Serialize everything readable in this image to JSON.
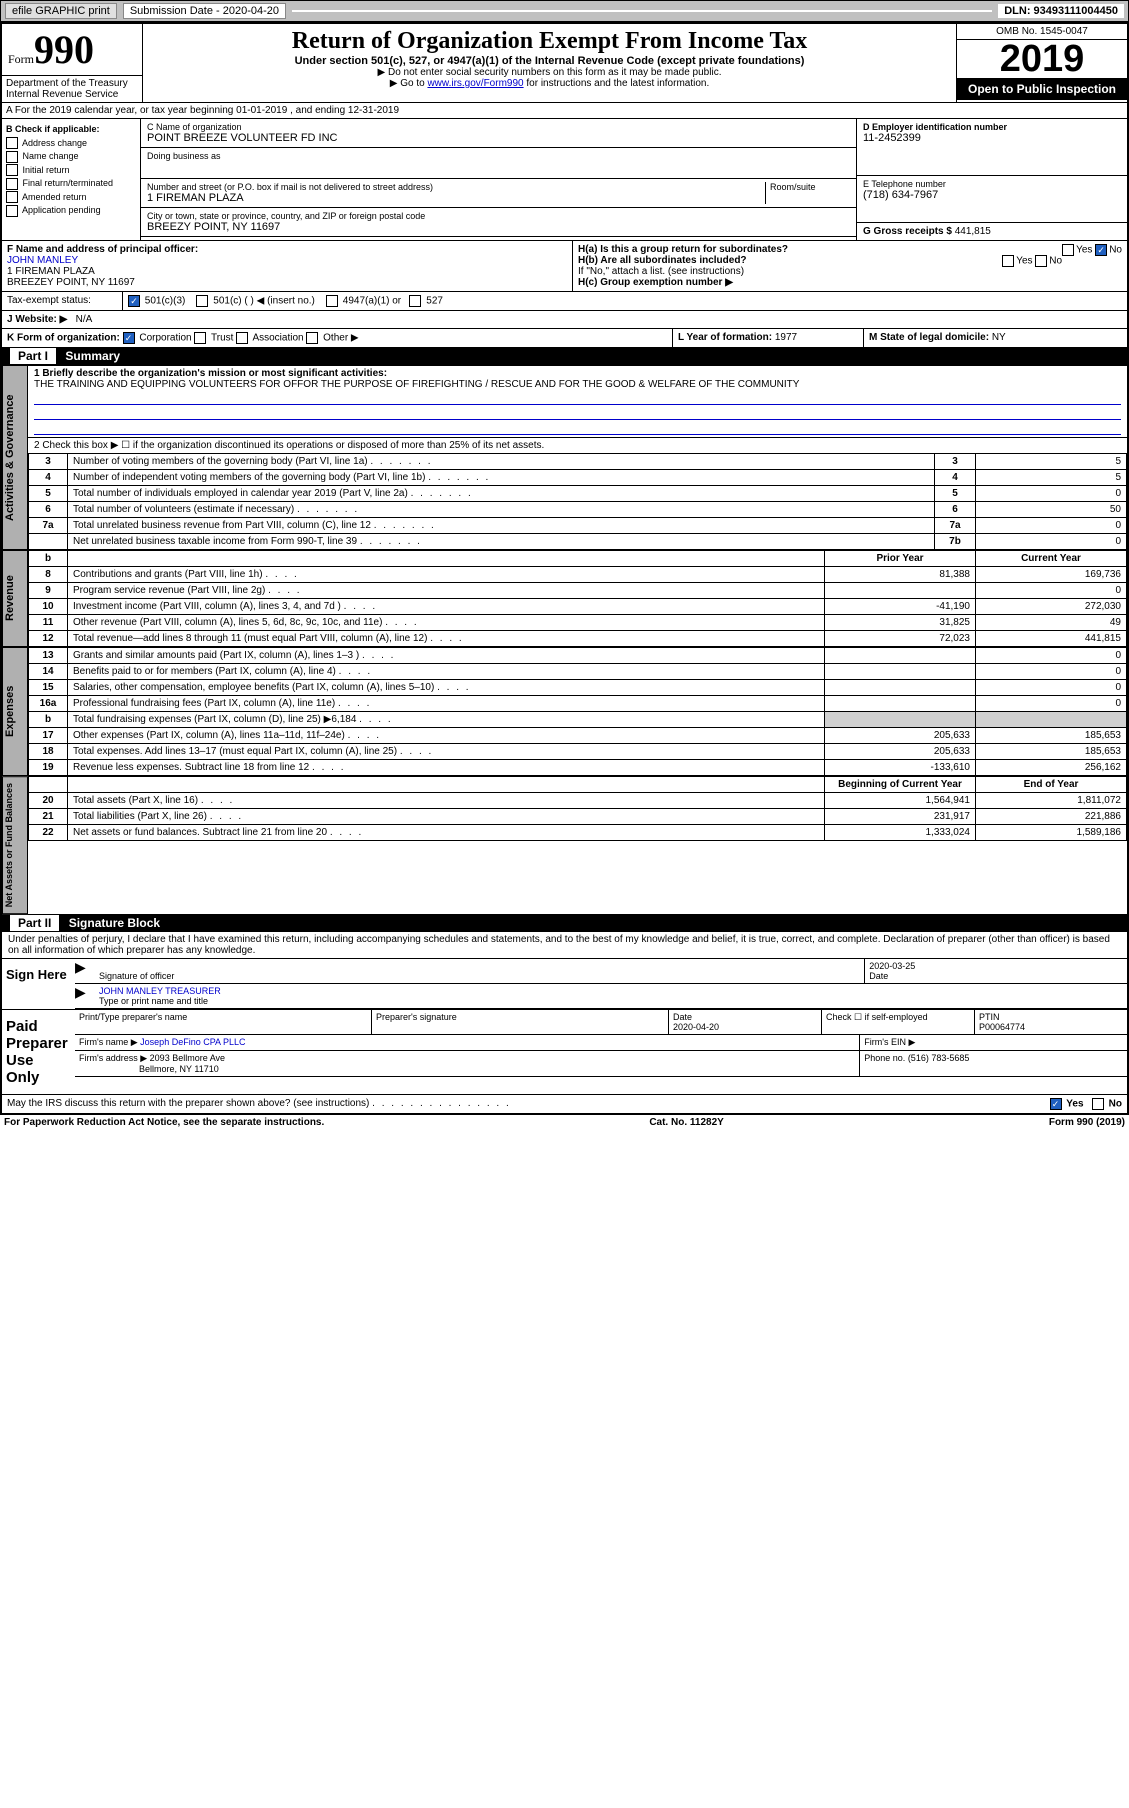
{
  "topbar": {
    "efile": "efile GRAPHIC print",
    "subdate_label": "Submission Date - 2020-04-20",
    "dln_label": "DLN: 93493111004450"
  },
  "header": {
    "form_word": "Form",
    "form_num": "990",
    "title": "Return of Organization Exempt From Income Tax",
    "sub": "Under section 501(c), 527, or 4947(a)(1) of the Internal Revenue Code (except private foundations)",
    "note1": "▶ Do not enter social security numbers on this form as it may be made public.",
    "note2_pre": "▶ Go to ",
    "note2_link": "www.irs.gov/Form990",
    "note2_post": " for instructions and the latest information.",
    "dept": "Department of the Treasury\nInternal Revenue Service",
    "omb": "OMB No. 1545-0047",
    "year": "2019",
    "open": "Open to Public Inspection"
  },
  "rowA": "A For the 2019 calendar year, or tax year beginning 01-01-2019    , and ending 12-31-2019",
  "boxB": {
    "label": "B Check if applicable:",
    "items": [
      "Address change",
      "Name change",
      "Initial return",
      "Final return/terminated",
      "Amended return",
      "Application pending"
    ]
  },
  "boxC": {
    "name_label": "C Name of organization",
    "name": "POINT BREEZE VOLUNTEER FD INC",
    "dba_label": "Doing business as",
    "addr_label": "Number and street (or P.O. box if mail is not delivered to street address)",
    "room_label": "Room/suite",
    "addr": "1 FIREMAN PLAZA",
    "city_label": "City or town, state or province, country, and ZIP or foreign postal code",
    "city": "BREEZY POINT, NY  11697"
  },
  "boxD": {
    "label": "D Employer identification number",
    "val": "11-2452399"
  },
  "boxE": {
    "label": "E Telephone number",
    "val": "(718) 634-7967"
  },
  "boxG": {
    "label": "G Gross receipts $",
    "val": "441,815"
  },
  "boxF": {
    "label": "F  Name and address of principal officer:",
    "name": "JOHN MANLEY",
    "addr1": "1 FIREMAN PLAZA",
    "addr2": "BREEZEY POINT, NY  11697"
  },
  "boxH": {
    "ha": "H(a)  Is this a group return for subordinates?",
    "hb": "H(b)  Are all subordinates included?",
    "hb_note": "If \"No,\" attach a list. (see instructions)",
    "hc": "H(c)  Group exemption number ▶",
    "yes": "Yes",
    "no": "No"
  },
  "taxExempt": {
    "label": "Tax-exempt status:",
    "opt1": "501(c)(3)",
    "opt2": "501(c) (   ) ◀ (insert no.)",
    "opt3": "4947(a)(1) or",
    "opt4": "527"
  },
  "website": {
    "label": "J   Website: ▶",
    "val": "N/A"
  },
  "boxK": {
    "label": "K Form of organization:",
    "opts": [
      "Corporation",
      "Trust",
      "Association",
      "Other ▶"
    ]
  },
  "boxL": {
    "label": "L Year of formation:",
    "val": "1977"
  },
  "boxM": {
    "label": "M State of legal domicile:",
    "val": "NY"
  },
  "part1": {
    "label": "Part I",
    "title": "Summary",
    "line1_label": "1  Briefly describe the organization's mission or most significant activities:",
    "line1_val": "THE TRAINING AND EQUIPPING VOLUNTEERS FOR OFFOR THE PURPOSE OF FIREFIGHTING / RESCUE AND FOR THE GOOD & WELFARE OF THE COMMUNITY",
    "line2": "2   Check this box ▶ ☐  if the organization discontinued its operations or disposed of more than 25% of its net assets."
  },
  "vtabs": {
    "gov": "Activities & Governance",
    "rev": "Revenue",
    "exp": "Expenses",
    "net": "Net Assets or Fund Balances"
  },
  "gov_lines": [
    {
      "n": "3",
      "desc": "Number of voting members of the governing body (Part VI, line 1a)",
      "box": "3",
      "val": "5"
    },
    {
      "n": "4",
      "desc": "Number of independent voting members of the governing body (Part VI, line 1b)",
      "box": "4",
      "val": "5"
    },
    {
      "n": "5",
      "desc": "Total number of individuals employed in calendar year 2019 (Part V, line 2a)",
      "box": "5",
      "val": "0"
    },
    {
      "n": "6",
      "desc": "Total number of volunteers (estimate if necessary)",
      "box": "6",
      "val": "50"
    },
    {
      "n": "7a",
      "desc": "Total unrelated business revenue from Part VIII, column (C), line 12",
      "box": "7a",
      "val": "0"
    },
    {
      "n": "",
      "desc": "Net unrelated business taxable income from Form 990-T, line 39",
      "box": "7b",
      "val": "0"
    }
  ],
  "year_cols": {
    "prior": "Prior Year",
    "current": "Current Year"
  },
  "rev_lines": [
    {
      "n": "8",
      "desc": "Contributions and grants (Part VIII, line 1h)",
      "py": "81,388",
      "cy": "169,736"
    },
    {
      "n": "9",
      "desc": "Program service revenue (Part VIII, line 2g)",
      "py": "",
      "cy": "0"
    },
    {
      "n": "10",
      "desc": "Investment income (Part VIII, column (A), lines 3, 4, and 7d )",
      "py": "-41,190",
      "cy": "272,030"
    },
    {
      "n": "11",
      "desc": "Other revenue (Part VIII, column (A), lines 5, 6d, 8c, 9c, 10c, and 11e)",
      "py": "31,825",
      "cy": "49"
    },
    {
      "n": "12",
      "desc": "Total revenue—add lines 8 through 11 (must equal Part VIII, column (A), line 12)",
      "py": "72,023",
      "cy": "441,815"
    }
  ],
  "exp_lines": [
    {
      "n": "13",
      "desc": "Grants and similar amounts paid (Part IX, column (A), lines 1–3 )",
      "py": "",
      "cy": "0"
    },
    {
      "n": "14",
      "desc": "Benefits paid to or for members (Part IX, column (A), line 4)",
      "py": "",
      "cy": "0"
    },
    {
      "n": "15",
      "desc": "Salaries, other compensation, employee benefits (Part IX, column (A), lines 5–10)",
      "py": "",
      "cy": "0"
    },
    {
      "n": "16a",
      "desc": "Professional fundraising fees (Part IX, column (A), line 11e)",
      "py": "",
      "cy": "0"
    },
    {
      "n": "b",
      "desc": "Total fundraising expenses (Part IX, column (D), line 25) ▶6,184",
      "py": "shaded",
      "cy": "shaded"
    },
    {
      "n": "17",
      "desc": "Other expenses (Part IX, column (A), lines 11a–11d, 11f–24e)",
      "py": "205,633",
      "cy": "185,653"
    },
    {
      "n": "18",
      "desc": "Total expenses. Add lines 13–17 (must equal Part IX, column (A), line 25)",
      "py": "205,633",
      "cy": "185,653"
    },
    {
      "n": "19",
      "desc": "Revenue less expenses. Subtract line 18 from line 12",
      "py": "-133,610",
      "cy": "256,162"
    }
  ],
  "net_cols": {
    "begin": "Beginning of Current Year",
    "end": "End of Year"
  },
  "net_lines": [
    {
      "n": "20",
      "desc": "Total assets (Part X, line 16)",
      "py": "1,564,941",
      "cy": "1,811,072"
    },
    {
      "n": "21",
      "desc": "Total liabilities (Part X, line 26)",
      "py": "231,917",
      "cy": "221,886"
    },
    {
      "n": "22",
      "desc": "Net assets or fund balances. Subtract line 21 from line 20",
      "py": "1,333,024",
      "cy": "1,589,186"
    }
  ],
  "part2": {
    "label": "Part II",
    "title": "Signature Block",
    "decl": "Under penalties of perjury, I declare that I have examined this return, including accompanying schedules and statements, and to the best of my knowledge and belief, it is true, correct, and complete. Declaration of preparer (other than officer) is based on all information of which preparer has any knowledge."
  },
  "sign": {
    "here": "Sign Here",
    "sig_label": "Signature of officer",
    "date_label": "Date",
    "date": "2020-03-25",
    "name": "JOHN MANLEY TREASURER",
    "name_label": "Type or print name and title"
  },
  "paid": {
    "label": "Paid Preparer Use Only",
    "pt_name": "Print/Type preparer's name",
    "pt_sig": "Preparer's signature",
    "pt_date_label": "Date",
    "pt_date": "2020-04-20",
    "check_label": "Check ☐ if self-employed",
    "ptin_label": "PTIN",
    "ptin": "P00064774",
    "firm_name_label": "Firm's name     ▶",
    "firm_name": "Joseph DeFino CPA PLLC",
    "firm_ein_label": "Firm's EIN ▶",
    "firm_addr_label": "Firm's address ▶",
    "firm_addr": "2093 Bellmore Ave",
    "firm_city": "Bellmore, NY  11710",
    "phone_label": "Phone no.",
    "phone": "(516) 783-5685"
  },
  "discuss": "May the IRS discuss this return with the preparer shown above? (see instructions)",
  "footer": {
    "left": "For Paperwork Reduction Act Notice, see the separate instructions.",
    "mid": "Cat. No. 11282Y",
    "right": "Form 990 (2019)"
  }
}
